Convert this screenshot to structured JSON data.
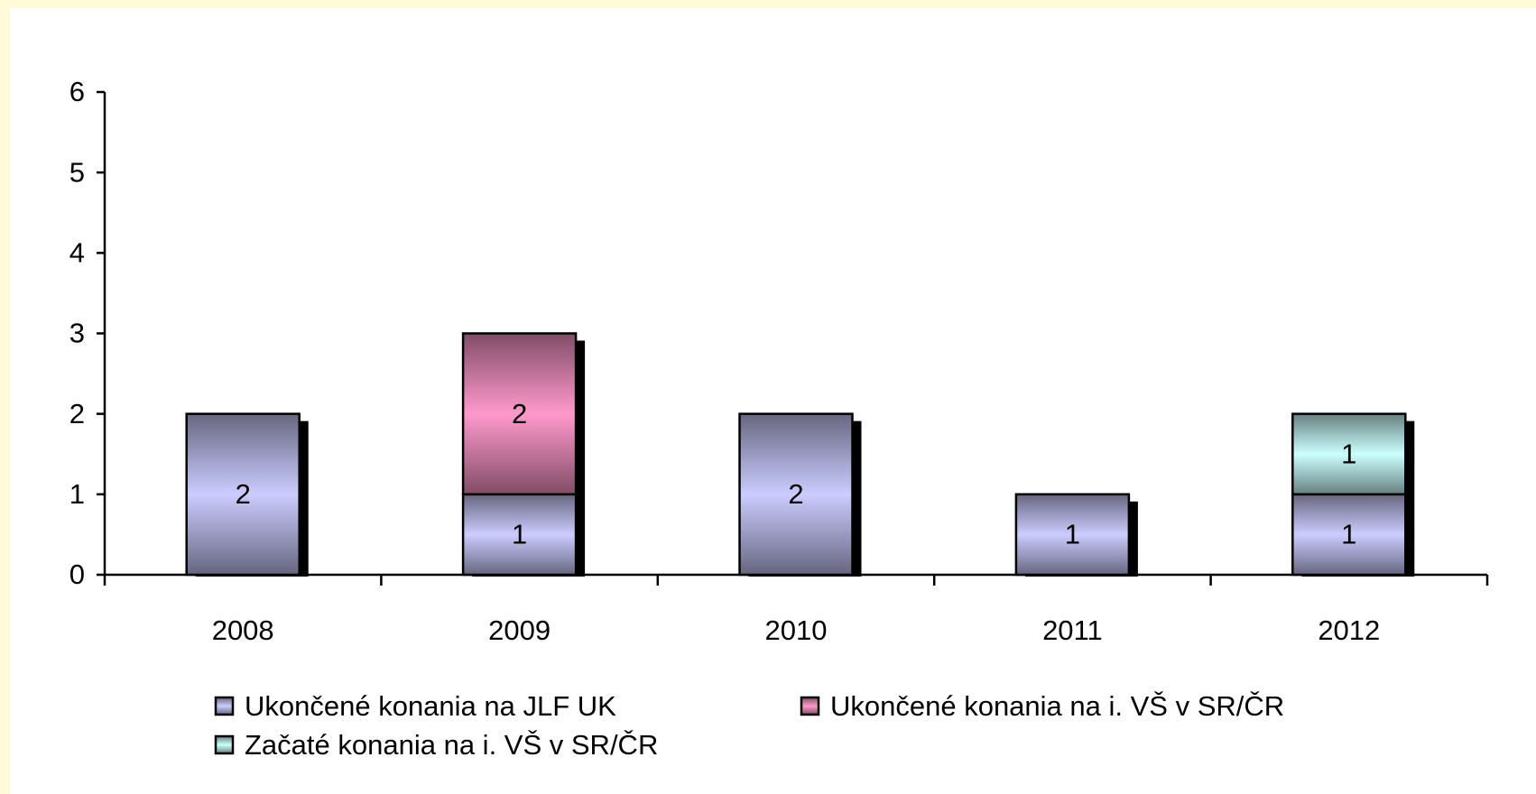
{
  "chart_data": {
    "type": "bar",
    "stacked": true,
    "categories": [
      "2008",
      "2009",
      "2010",
      "2011",
      "2012"
    ],
    "series": [
      {
        "name": "Ukončené konania na JLF UK",
        "color": "#ccccff",
        "values": [
          2,
          1,
          2,
          1,
          1
        ]
      },
      {
        "name": "Ukončené konania na i. VŠ v SR/ČR",
        "color": "#ff99cc",
        "values": [
          0,
          2,
          0,
          0,
          0
        ]
      },
      {
        "name": "Začaté konania na i. VŠ v SR/ČR",
        "color": "#ccffff",
        "values": [
          0,
          0,
          0,
          0,
          1
        ]
      }
    ],
    "ylim": [
      0,
      6
    ],
    "yticks": [
      0,
      1,
      2,
      3,
      4,
      5,
      6
    ],
    "grid": false,
    "legend": "bottom"
  }
}
